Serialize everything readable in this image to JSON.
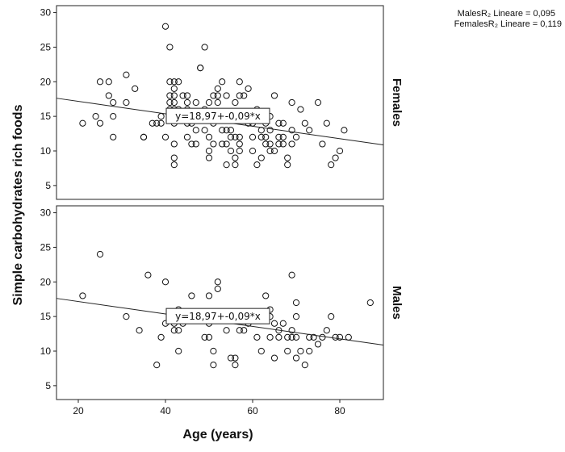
{
  "chart_data": {
    "type": "scatter",
    "xlabel": "Age (years)",
    "ylabel": "Simple carbohydrates rich foods",
    "xlim": [
      15,
      90
    ],
    "ylim": [
      3,
      31
    ],
    "x_ticks": [
      20,
      40,
      60,
      80
    ],
    "y_ticks": [
      5,
      10,
      15,
      20,
      25,
      30
    ],
    "r_squared": [
      {
        "text": "MalesR₂ Lineare = 0,095"
      },
      {
        "text": "FemalesR₂ Lineare = 0,119"
      }
    ],
    "panels": [
      {
        "name": "Females",
        "fit": {
          "intercept": 18.97,
          "slope": -0.09
        },
        "equation": "y=18,97+-0,09*x",
        "points": [
          [
            21,
            14
          ],
          [
            24,
            15
          ],
          [
            25,
            20
          ],
          [
            25,
            14
          ],
          [
            27,
            20
          ],
          [
            27,
            18
          ],
          [
            28,
            17
          ],
          [
            28,
            15
          ],
          [
            28,
            12
          ],
          [
            31,
            21
          ],
          [
            31,
            17
          ],
          [
            33,
            19
          ],
          [
            35,
            12
          ],
          [
            35,
            12
          ],
          [
            37,
            14
          ],
          [
            38,
            14
          ],
          [
            39,
            14
          ],
          [
            39,
            15
          ],
          [
            40,
            28
          ],
          [
            40,
            12
          ],
          [
            41,
            25
          ],
          [
            41,
            20
          ],
          [
            41,
            18
          ],
          [
            41,
            17
          ],
          [
            41,
            16
          ],
          [
            41,
            15
          ],
          [
            42,
            20
          ],
          [
            42,
            19
          ],
          [
            42,
            18
          ],
          [
            42,
            17
          ],
          [
            42,
            16
          ],
          [
            42,
            15
          ],
          [
            42,
            14
          ],
          [
            42,
            11
          ],
          [
            42,
            9
          ],
          [
            42,
            8
          ],
          [
            43,
            20
          ],
          [
            43,
            16
          ],
          [
            43,
            15
          ],
          [
            44,
            18
          ],
          [
            44,
            15
          ],
          [
            45,
            18
          ],
          [
            45,
            17
          ],
          [
            45,
            16
          ],
          [
            45,
            15
          ],
          [
            45,
            14
          ],
          [
            45,
            12
          ],
          [
            46,
            11
          ],
          [
            46,
            14
          ],
          [
            47,
            17
          ],
          [
            47,
            11
          ],
          [
            47,
            13
          ],
          [
            48,
            22
          ],
          [
            48,
            22
          ],
          [
            49,
            25
          ],
          [
            49,
            16
          ],
          [
            49,
            13
          ],
          [
            50,
            12
          ],
          [
            50,
            10
          ],
          [
            50,
            9
          ],
          [
            50,
            15
          ],
          [
            50,
            17
          ],
          [
            51,
            18
          ],
          [
            51,
            14
          ],
          [
            51,
            11
          ],
          [
            52,
            19
          ],
          [
            52,
            18
          ],
          [
            52,
            17
          ],
          [
            52,
            15
          ],
          [
            53,
            13
          ],
          [
            53,
            11
          ],
          [
            53,
            20
          ],
          [
            54,
            18
          ],
          [
            54,
            13
          ],
          [
            54,
            8
          ],
          [
            54,
            11
          ],
          [
            55,
            12
          ],
          [
            55,
            10
          ],
          [
            55,
            13
          ],
          [
            55,
            15
          ],
          [
            56,
            12
          ],
          [
            56,
            9
          ],
          [
            56,
            8
          ],
          [
            56,
            17
          ],
          [
            57,
            20
          ],
          [
            57,
            18
          ],
          [
            57,
            15
          ],
          [
            57,
            12
          ],
          [
            57,
            11
          ],
          [
            57,
            10
          ],
          [
            58,
            18
          ],
          [
            59,
            19
          ],
          [
            59,
            14
          ],
          [
            60,
            14
          ],
          [
            60,
            12
          ],
          [
            60,
            10
          ],
          [
            61,
            16
          ],
          [
            61,
            8
          ],
          [
            62,
            13
          ],
          [
            62,
            12
          ],
          [
            62,
            9
          ],
          [
            63,
            14
          ],
          [
            63,
            12
          ],
          [
            63,
            11
          ],
          [
            64,
            15
          ],
          [
            64,
            13
          ],
          [
            64,
            11
          ],
          [
            64,
            10
          ],
          [
            65,
            10
          ],
          [
            65,
            18
          ],
          [
            66,
            14
          ],
          [
            66,
            12
          ],
          [
            66,
            11
          ],
          [
            67,
            14
          ],
          [
            67,
            12
          ],
          [
            67,
            11
          ],
          [
            68,
            9
          ],
          [
            68,
            8
          ],
          [
            69,
            13
          ],
          [
            69,
            11
          ],
          [
            69,
            17
          ],
          [
            70,
            12
          ],
          [
            71,
            16
          ],
          [
            72,
            14
          ],
          [
            73,
            13
          ],
          [
            75,
            17
          ],
          [
            76,
            11
          ],
          [
            77,
            14
          ],
          [
            78,
            8
          ],
          [
            79,
            9
          ],
          [
            80,
            10
          ],
          [
            81,
            13
          ]
        ]
      },
      {
        "name": "Males",
        "fit": {
          "intercept": 18.97,
          "slope": -0.09
        },
        "equation": "y=18,97+-0,09*x",
        "points": [
          [
            21,
            18
          ],
          [
            25,
            24
          ],
          [
            31,
            15
          ],
          [
            34,
            13
          ],
          [
            36,
            21
          ],
          [
            38,
            8
          ],
          [
            39,
            12
          ],
          [
            40,
            20
          ],
          [
            40,
            14
          ],
          [
            41,
            15
          ],
          [
            42,
            14
          ],
          [
            42,
            13
          ],
          [
            43,
            16
          ],
          [
            43,
            13
          ],
          [
            43,
            10
          ],
          [
            44,
            14
          ],
          [
            46,
            18
          ],
          [
            49,
            15
          ],
          [
            49,
            12
          ],
          [
            50,
            18
          ],
          [
            50,
            14
          ],
          [
            50,
            12
          ],
          [
            51,
            10
          ],
          [
            51,
            8
          ],
          [
            52,
            20
          ],
          [
            52,
            19
          ],
          [
            53,
            15
          ],
          [
            54,
            13
          ],
          [
            55,
            9
          ],
          [
            56,
            9
          ],
          [
            56,
            8
          ],
          [
            57,
            13
          ],
          [
            58,
            13
          ],
          [
            59,
            14
          ],
          [
            61,
            12
          ],
          [
            62,
            10
          ],
          [
            63,
            18
          ],
          [
            64,
            16
          ],
          [
            64,
            15
          ],
          [
            64,
            12
          ],
          [
            65,
            14
          ],
          [
            65,
            9
          ],
          [
            66,
            13
          ],
          [
            66,
            12
          ],
          [
            67,
            14
          ],
          [
            68,
            12
          ],
          [
            68,
            10
          ],
          [
            69,
            21
          ],
          [
            69,
            13
          ],
          [
            69,
            12
          ],
          [
            70,
            17
          ],
          [
            70,
            15
          ],
          [
            70,
            12
          ],
          [
            70,
            9
          ],
          [
            71,
            10
          ],
          [
            72,
            8
          ],
          [
            73,
            12
          ],
          [
            73,
            10
          ],
          [
            74,
            12
          ],
          [
            75,
            11
          ],
          [
            76,
            12
          ],
          [
            77,
            13
          ],
          [
            78,
            15
          ],
          [
            79,
            12
          ],
          [
            80,
            12
          ],
          [
            82,
            12
          ],
          [
            87,
            17
          ]
        ]
      }
    ]
  }
}
